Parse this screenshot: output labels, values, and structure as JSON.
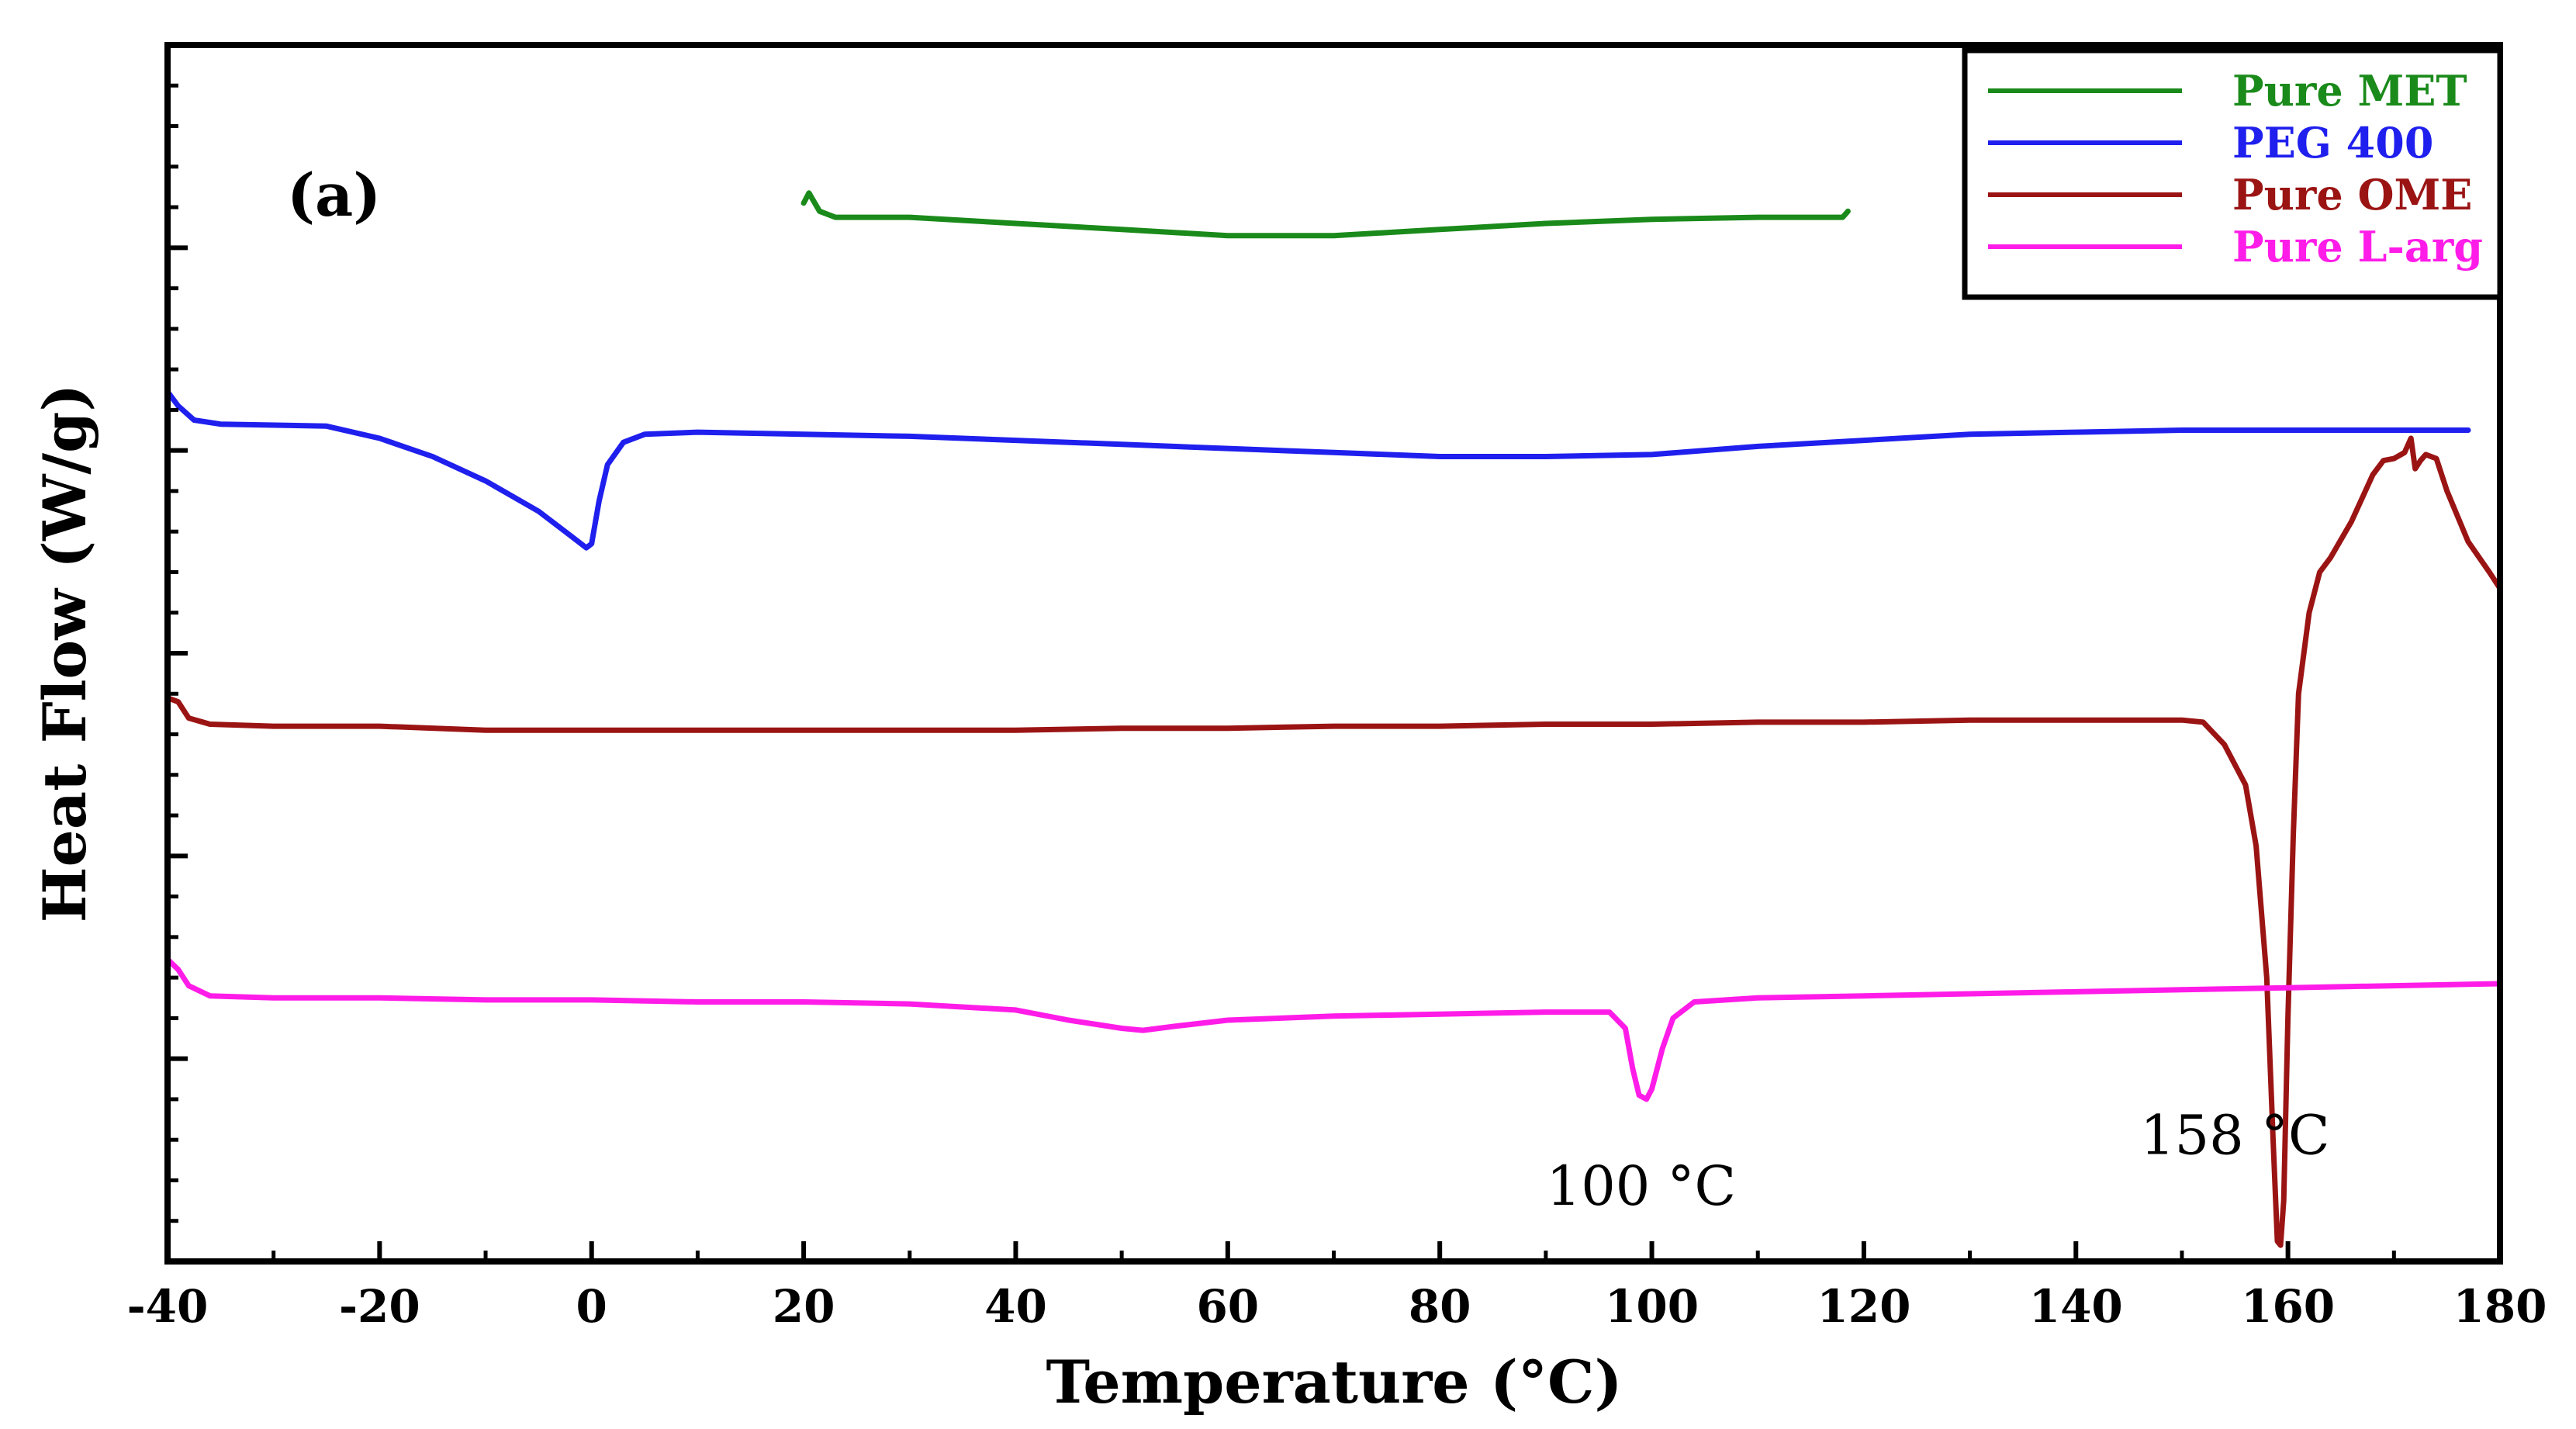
{
  "chart_data": {
    "type": "line",
    "title": "",
    "panel_label": "(a)",
    "xlabel": "Temperature (°C)",
    "ylabel": "Heat Flow (W/g)",
    "xlim": [
      -40,
      180
    ],
    "ylim": [
      0,
      6
    ],
    "xticks": [
      -40,
      -20,
      0,
      20,
      40,
      60,
      80,
      100,
      120,
      140,
      160,
      180
    ],
    "xtick_labels": [
      "-40",
      "-20",
      "0",
      "20",
      "40",
      "60",
      "80",
      "100",
      "120",
      "140",
      "160",
      "180"
    ],
    "yticks": [
      0,
      1,
      2,
      3,
      4,
      5,
      6
    ],
    "y_tick_labels_shown": false,
    "grid": false,
    "legend_position": "top-right",
    "series": [
      {
        "name": "Pure MET",
        "color": "#1a8a1a",
        "points": [
          [
            20,
            5.22
          ],
          [
            20.5,
            5.27
          ],
          [
            21.5,
            5.18
          ],
          [
            23,
            5.15
          ],
          [
            30,
            5.15
          ],
          [
            40,
            5.12
          ],
          [
            50,
            5.09
          ],
          [
            60,
            5.06
          ],
          [
            70,
            5.06
          ],
          [
            80,
            5.09
          ],
          [
            90,
            5.12
          ],
          [
            100,
            5.14
          ],
          [
            110,
            5.15
          ],
          [
            118,
            5.15
          ],
          [
            118.5,
            5.18
          ]
        ]
      },
      {
        "name": "PEG 400",
        "color": "#1f1fee",
        "points": [
          [
            -40,
            4.29
          ],
          [
            -39,
            4.22
          ],
          [
            -37.5,
            4.15
          ],
          [
            -35,
            4.13
          ],
          [
            -25,
            4.12
          ],
          [
            -20,
            4.06
          ],
          [
            -15,
            3.97
          ],
          [
            -10,
            3.85
          ],
          [
            -5,
            3.7
          ],
          [
            -2,
            3.58
          ],
          [
            -0.5,
            3.52
          ],
          [
            0,
            3.54
          ],
          [
            0.7,
            3.75
          ],
          [
            1.5,
            3.93
          ],
          [
            3,
            4.04
          ],
          [
            5,
            4.08
          ],
          [
            10,
            4.09
          ],
          [
            20,
            4.08
          ],
          [
            30,
            4.07
          ],
          [
            40,
            4.05
          ],
          [
            50,
            4.03
          ],
          [
            60,
            4.01
          ],
          [
            70,
            3.99
          ],
          [
            80,
            3.97
          ],
          [
            90,
            3.97
          ],
          [
            100,
            3.98
          ],
          [
            110,
            4.02
          ],
          [
            120,
            4.05
          ],
          [
            130,
            4.08
          ],
          [
            140,
            4.09
          ],
          [
            150,
            4.1
          ],
          [
            160,
            4.1
          ],
          [
            170,
            4.1
          ],
          [
            177,
            4.1
          ]
        ]
      },
      {
        "name": "Pure OME",
        "color": "#9b1414",
        "points": [
          [
            -40,
            2.78
          ],
          [
            -39,
            2.76
          ],
          [
            -38,
            2.68
          ],
          [
            -36,
            2.65
          ],
          [
            -30,
            2.64
          ],
          [
            -20,
            2.64
          ],
          [
            -10,
            2.62
          ],
          [
            0,
            2.62
          ],
          [
            10,
            2.62
          ],
          [
            20,
            2.62
          ],
          [
            30,
            2.62
          ],
          [
            40,
            2.62
          ],
          [
            50,
            2.63
          ],
          [
            60,
            2.63
          ],
          [
            70,
            2.64
          ],
          [
            80,
            2.64
          ],
          [
            90,
            2.65
          ],
          [
            100,
            2.65
          ],
          [
            110,
            2.66
          ],
          [
            120,
            2.66
          ],
          [
            130,
            2.67
          ],
          [
            140,
            2.67
          ],
          [
            150,
            2.67
          ],
          [
            152,
            2.66
          ],
          [
            154,
            2.55
          ],
          [
            156,
            2.35
          ],
          [
            157,
            2.05
          ],
          [
            158,
            1.4
          ],
          [
            158.6,
            0.6
          ],
          [
            159,
            0.1
          ],
          [
            159.3,
            0.08
          ],
          [
            159.6,
            0.3
          ],
          [
            160,
            1.2
          ],
          [
            160.5,
            2.1
          ],
          [
            161,
            2.8
          ],
          [
            162,
            3.2
          ],
          [
            163,
            3.4
          ],
          [
            164,
            3.47
          ],
          [
            166,
            3.65
          ],
          [
            168,
            3.88
          ],
          [
            169,
            3.95
          ],
          [
            170,
            3.96
          ],
          [
            171,
            3.99
          ],
          [
            171.6,
            4.06
          ],
          [
            172,
            3.91
          ],
          [
            172.5,
            3.95
          ],
          [
            173,
            3.98
          ],
          [
            174,
            3.96
          ],
          [
            175,
            3.8
          ],
          [
            177,
            3.55
          ],
          [
            179,
            3.4
          ],
          [
            180,
            3.32
          ]
        ]
      },
      {
        "name": "Pure L-arg",
        "color": "#ff1ce8",
        "points": [
          [
            -40,
            1.49
          ],
          [
            -39,
            1.44
          ],
          [
            -38,
            1.36
          ],
          [
            -36,
            1.31
          ],
          [
            -30,
            1.3
          ],
          [
            -20,
            1.3
          ],
          [
            -10,
            1.29
          ],
          [
            0,
            1.29
          ],
          [
            10,
            1.28
          ],
          [
            20,
            1.28
          ],
          [
            30,
            1.27
          ],
          [
            40,
            1.24
          ],
          [
            45,
            1.19
          ],
          [
            50,
            1.15
          ],
          [
            52,
            1.14
          ],
          [
            55,
            1.16
          ],
          [
            60,
            1.19
          ],
          [
            70,
            1.21
          ],
          [
            80,
            1.22
          ],
          [
            90,
            1.23
          ],
          [
            96,
            1.23
          ],
          [
            97.5,
            1.15
          ],
          [
            98.2,
            0.95
          ],
          [
            98.8,
            0.82
          ],
          [
            99.5,
            0.8
          ],
          [
            100,
            0.85
          ],
          [
            101,
            1.05
          ],
          [
            102,
            1.2
          ],
          [
            104,
            1.28
          ],
          [
            110,
            1.3
          ],
          [
            120,
            1.31
          ],
          [
            130,
            1.32
          ],
          [
            140,
            1.33
          ],
          [
            150,
            1.34
          ],
          [
            160,
            1.35
          ],
          [
            170,
            1.36
          ],
          [
            180,
            1.37
          ]
        ]
      }
    ],
    "annotations": [
      {
        "text": "100 °C",
        "x": 99,
        "y": 0.28
      },
      {
        "text": "158 °C",
        "x": 155,
        "y": 0.53
      }
    ]
  },
  "colors": {
    "axis": "#000000",
    "background": "#ffffff"
  }
}
